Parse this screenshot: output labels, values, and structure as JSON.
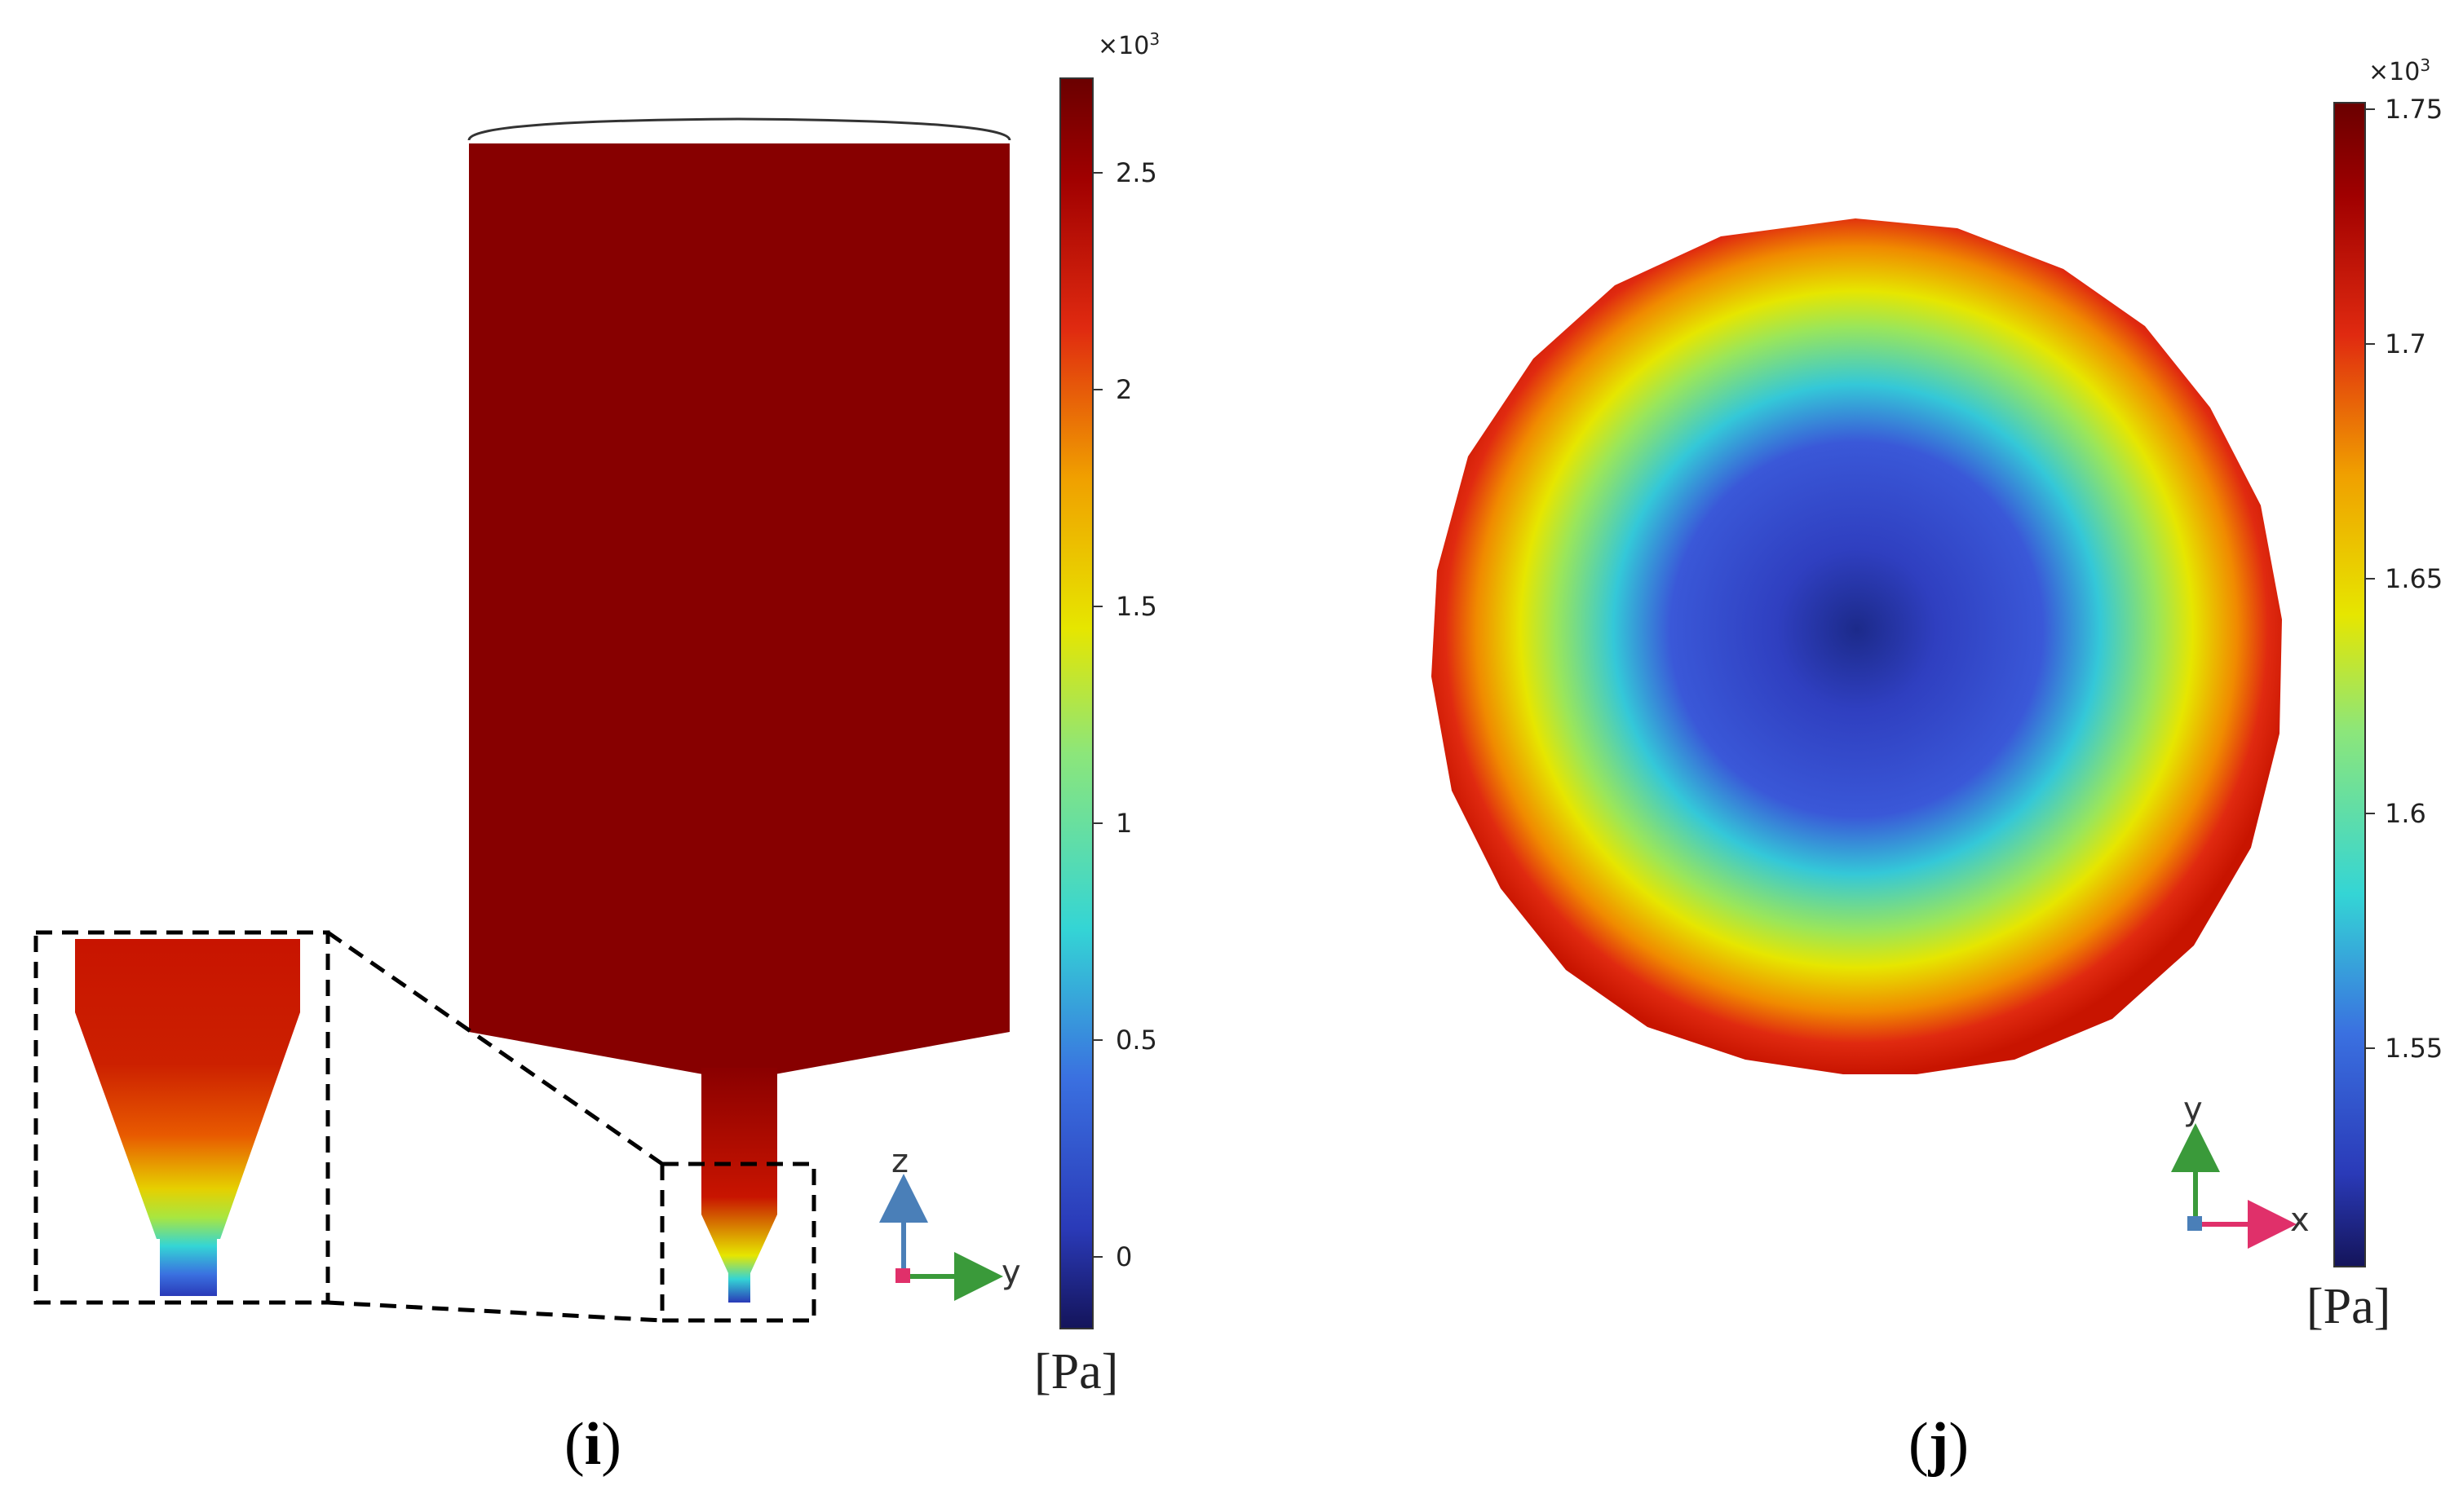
{
  "panel_i": {
    "label": "(i)",
    "label_letter": "i",
    "colorbar": {
      "exponent": "×10",
      "exponent_power": "3",
      "ticks": [
        "2.5",
        "2",
        "1.5",
        "1",
        "0.5",
        "0"
      ],
      "unit": "[Pa]",
      "range": [
        -0.15,
        2.7
      ]
    },
    "triad": {
      "vertical_axis": "z",
      "horizontal_axis": "y"
    }
  },
  "panel_j": {
    "label": "(j)",
    "label_letter": "j",
    "colorbar": {
      "exponent": "×10",
      "exponent_power": "3",
      "ticks": [
        "1.75",
        "1.7",
        "1.65",
        "1.6",
        "1.55"
      ],
      "unit": "[Pa]",
      "range": [
        1.505,
        1.755
      ]
    },
    "triad": {
      "vertical_axis": "y",
      "horizontal_axis": "x"
    }
  },
  "colors": {
    "dark_red": "#870000",
    "red": "#c81400",
    "yellow": "#e6e600",
    "cyan": "#34d5d5",
    "blue": "#3a4fd0",
    "dark_blue": "#1c2a8a",
    "axis_green": "#3a9a3a",
    "axis_blue": "#4a7fb8",
    "axis_pink": "#e0306a"
  }
}
